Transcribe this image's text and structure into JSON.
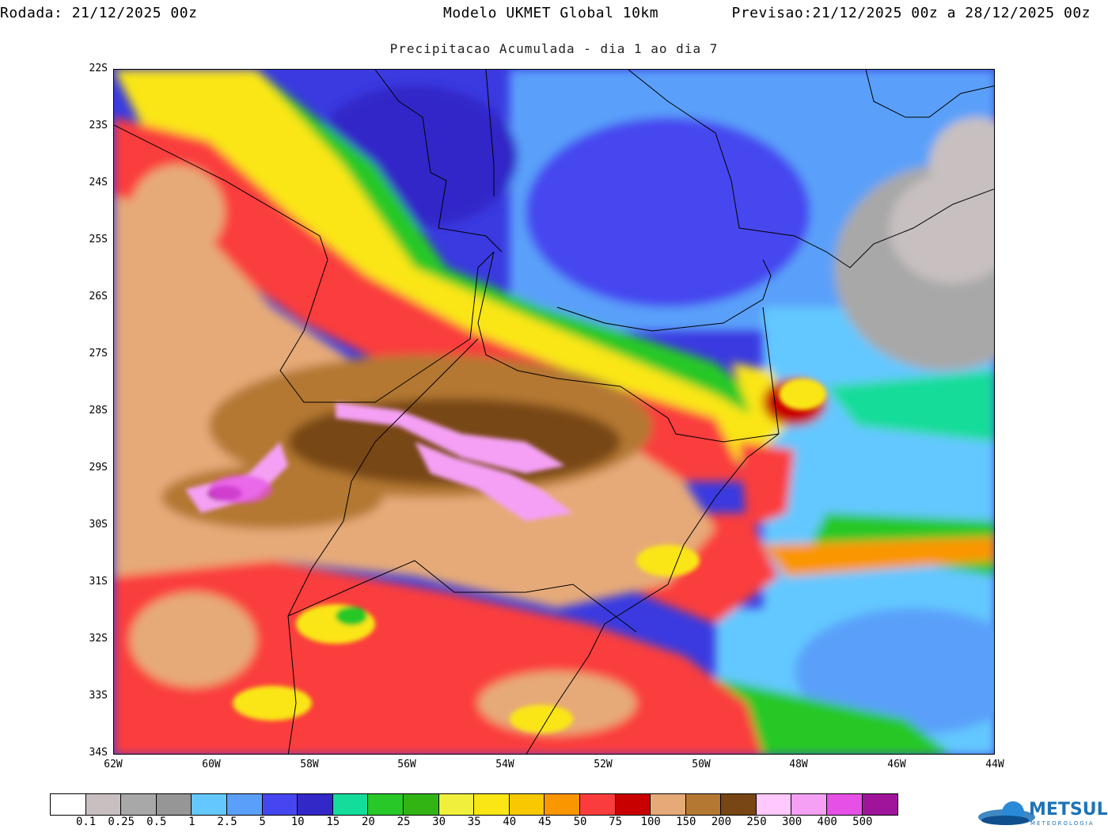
{
  "header": {
    "run_label": "Rodada:",
    "run_value": "21/12/2025 00z",
    "model": "Modelo UKMET Global 10km",
    "forecast_label": "Previsao:",
    "forecast_value": "21/12/2025 00z a 28/12/2025 00z"
  },
  "subtitle": "Precipitacao Acumulada - dia 1 ao dia 7",
  "axes": {
    "lat_labels": [
      "22S",
      "23S",
      "24S",
      "25S",
      "26S",
      "27S",
      "28S",
      "29S",
      "30S",
      "31S",
      "32S",
      "33S",
      "34S"
    ],
    "lon_labels": [
      "62W",
      "60W",
      "58W",
      "56W",
      "54W",
      "52W",
      "50W",
      "48W",
      "46W",
      "44W"
    ]
  },
  "map_extent": {
    "lon_min": -62,
    "lon_max": -44,
    "lat_min": -34,
    "lat_max": -22
  },
  "legend": {
    "colors": [
      "#ffffff",
      "#c8c0c0",
      "#a8a8a8",
      "#969696",
      "#64c8ff",
      "#5aa0fa",
      "#4646f0",
      "#3228c8",
      "#14dc9a",
      "#28c828",
      "#32b414",
      "#f0f03c",
      "#fae614",
      "#fac800",
      "#fa9600",
      "#fa3c3c",
      "#c80000",
      "#e6aa78",
      "#b47832",
      "#784614",
      "#ffc8ff",
      "#f5a0f5",
      "#e650e6",
      "#a0149b"
    ],
    "labels": [
      "0.1",
      "0.25",
      "0.5",
      "1",
      "2.5",
      "5",
      "10",
      "15",
      "20",
      "25",
      "30",
      "35",
      "40",
      "45",
      "50",
      "75",
      "100",
      "150",
      "200",
      "250",
      "300",
      "400",
      "500"
    ]
  },
  "logo": {
    "text": "METSUL",
    "sub": "METEOROLOGIA"
  }
}
